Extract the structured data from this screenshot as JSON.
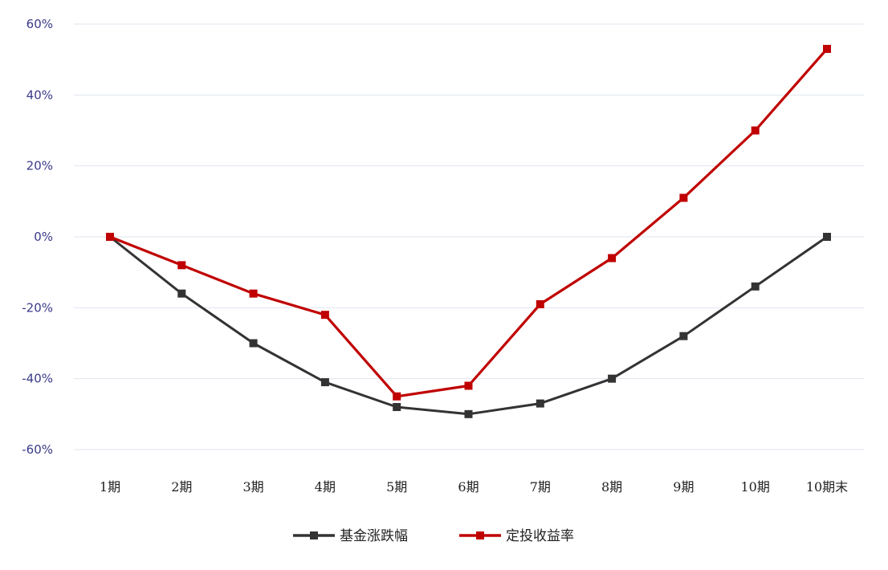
{
  "chart_data": {
    "type": "line",
    "title": "",
    "xlabel": "",
    "ylabel": "",
    "categories": [
      "1期",
      "2期",
      "3期",
      "4期",
      "5期",
      "6期",
      "7期",
      "8期",
      "9期",
      "10期",
      "10期末"
    ],
    "yticks": [
      60,
      40,
      20,
      0,
      -20,
      -40,
      -60
    ],
    "ytick_labels": [
      "60%",
      "40%",
      "20%",
      "0%",
      "-20%",
      "-40%",
      "-60%"
    ],
    "ylim": [
      -60,
      60
    ],
    "grid": true,
    "legend_position": "bottom",
    "series": [
      {
        "name": "基金涨跌幅",
        "color": "#333333",
        "marker": "square",
        "values": [
          0,
          -16,
          -30,
          -41,
          -48,
          -50,
          -47,
          -40,
          -28,
          -14,
          0
        ]
      },
      {
        "name": "定投收益率",
        "color": "#c00000",
        "marker": "square",
        "values": [
          0,
          -8,
          -16,
          -22,
          -45,
          -42,
          -19,
          -6,
          11,
          30,
          53
        ]
      }
    ]
  }
}
